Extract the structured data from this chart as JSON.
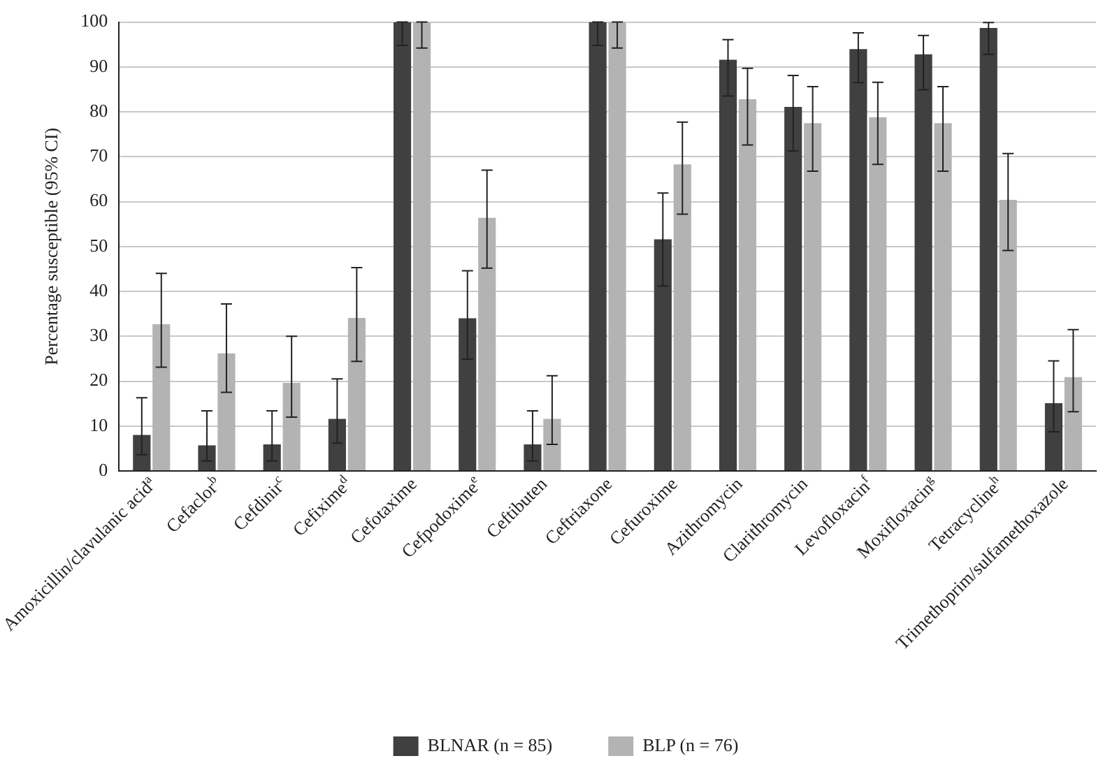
{
  "chart_data": {
    "type": "bar",
    "ylabel": "Percentage susceptible (95% CI)",
    "categories": [
      "Amoxicillin/clavulanic acid$^{a}$",
      "Cefaclor$^{b}$",
      "Cefdinir$^{c}$",
      "Cefixime$^{d}$",
      "Cefotaxime",
      "Cefpodoxime$^{e}$",
      "Ceftibuten",
      "Ceftriaxone",
      "Cefuroxime",
      "Azithromycin",
      "Clarithromycin",
      "Levofloxacin$^{f}$",
      "Moxifloxacin$^{g}$",
      "Tetracycline$^{h}$",
      "Trimethoprim/sulfamethoxazole"
    ],
    "series": [
      {
        "name": "BLNAR (n = 85)",
        "color": "#404040",
        "values": [
          8.0,
          5.7,
          5.9,
          11.6,
          100,
          34.0,
          5.9,
          100,
          51.6,
          91.6,
          81.1,
          94.0,
          92.8,
          98.7,
          15.1
        ],
        "errors": [
          [
            3.6,
            16.3
          ],
          [
            2.2,
            13.4
          ],
          [
            2.2,
            13.4
          ],
          [
            6.2,
            20.5
          ],
          [
            94.8,
            100
          ],
          [
            24.9,
            44.6
          ],
          [
            2.2,
            13.4
          ],
          [
            94.8,
            100
          ],
          [
            41.2,
            61.9
          ],
          [
            83.5,
            96.1
          ],
          [
            71.3,
            88.1
          ],
          [
            86.5,
            97.6
          ],
          [
            84.9,
            97.0
          ],
          [
            92.8,
            99.9
          ],
          [
            8.7,
            24.5
          ]
        ]
      },
      {
        "name": "BLP (n = 76)",
        "color": "#b3b3b3",
        "values": [
          32.7,
          26.2,
          19.6,
          34.1,
          100,
          56.4,
          11.6,
          100,
          68.3,
          82.8,
          77.5,
          78.8,
          77.5,
          60.4,
          20.9
        ],
        "errors": [
          [
            23.1,
            44.0
          ],
          [
            17.5,
            37.2
          ],
          [
            12.0,
            30.0
          ],
          [
            24.4,
            45.3
          ],
          [
            94.2,
            100
          ],
          [
            45.2,
            67.0
          ],
          [
            5.9,
            21.2
          ],
          [
            94.2,
            100
          ],
          [
            57.2,
            77.7
          ],
          [
            72.6,
            89.7
          ],
          [
            66.8,
            85.6
          ],
          [
            68.3,
            86.6
          ],
          [
            66.8,
            85.6
          ],
          [
            49.1,
            70.7
          ],
          [
            13.2,
            31.5
          ]
        ]
      }
    ],
    "ylim": [
      0,
      100
    ],
    "yticks": [
      0,
      10,
      20,
      30,
      40,
      50,
      60,
      70,
      80,
      90,
      100
    ],
    "grid": "y",
    "legend": "bottom"
  }
}
